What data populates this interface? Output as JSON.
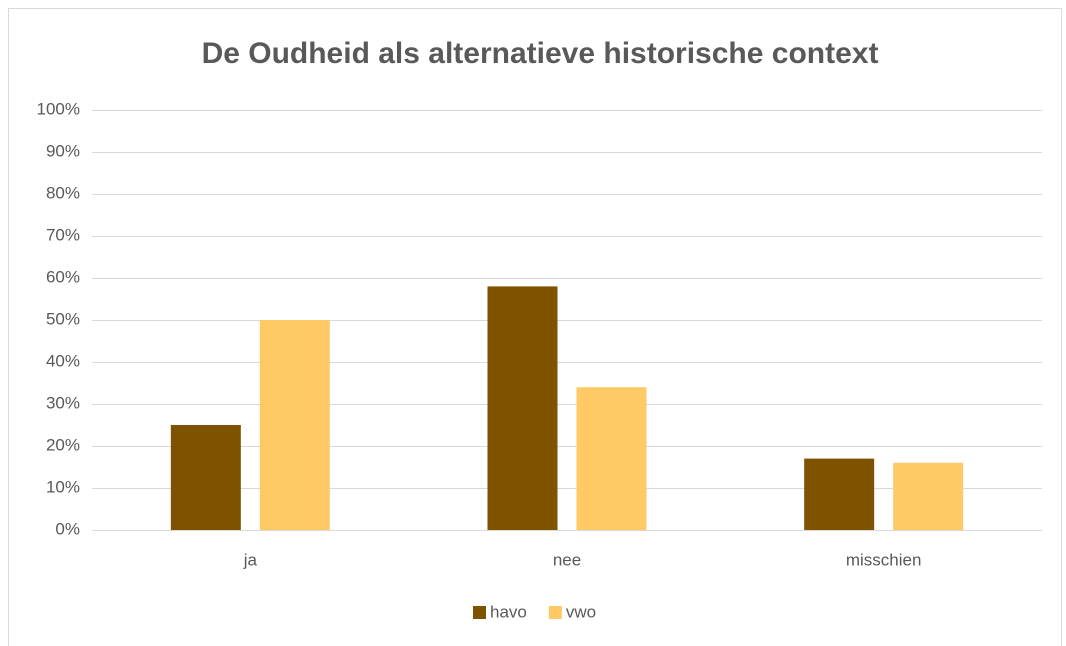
{
  "chart_data": {
    "type": "bar",
    "title": "De Oudheid als alternatieve historische context",
    "categories": [
      "ja",
      "nee",
      "misschien"
    ],
    "series": [
      {
        "name": "havo",
        "color": "#7f5200",
        "values": [
          25,
          58,
          17
        ]
      },
      {
        "name": "vwo",
        "color": "#ffca66",
        "values": [
          50,
          34,
          16
        ]
      }
    ],
    "ylim": [
      0,
      100
    ],
    "yticks": [
      {
        "value": 0,
        "label": "0%"
      },
      {
        "value": 10,
        "label": "10%"
      },
      {
        "value": 20,
        "label": "20%"
      },
      {
        "value": 30,
        "label": "30%"
      },
      {
        "value": 40,
        "label": "40%"
      },
      {
        "value": 50,
        "label": "50%"
      },
      {
        "value": 60,
        "label": "60%"
      },
      {
        "value": 70,
        "label": "70%"
      },
      {
        "value": 80,
        "label": "80%"
      },
      {
        "value": 90,
        "label": "90%"
      },
      {
        "value": 100,
        "label": "100%"
      }
    ],
    "grid": true,
    "legend": "bottom"
  }
}
